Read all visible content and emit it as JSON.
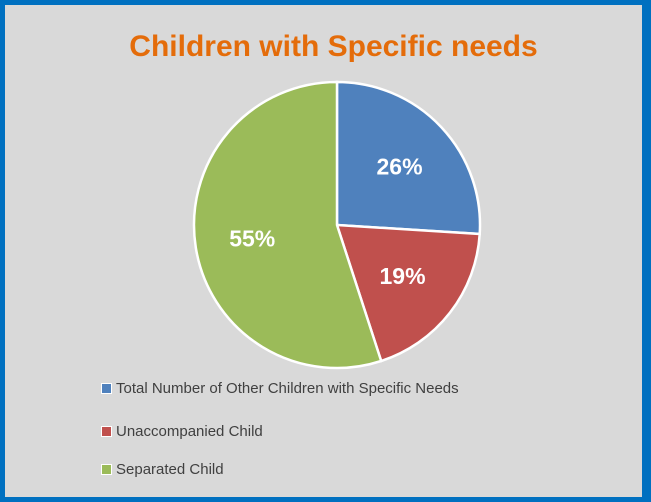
{
  "chart_data": {
    "type": "pie",
    "title": "Children with Specific needs",
    "categories": [
      "Total Number of Other Children with Specific Needs",
      "Unaccompanied Child",
      "Separated Child"
    ],
    "values": [
      26,
      19,
      55
    ],
    "labels": [
      "26%",
      "19%",
      "55%"
    ],
    "colors": [
      "#4f81bd",
      "#c0504d",
      "#9bbb59"
    ],
    "legend_position": "bottom-left",
    "label_color": "#ffffff",
    "title_color": "#e46c0a",
    "background_color": "#d9d9d9",
    "border_color": "#0070c0"
  }
}
